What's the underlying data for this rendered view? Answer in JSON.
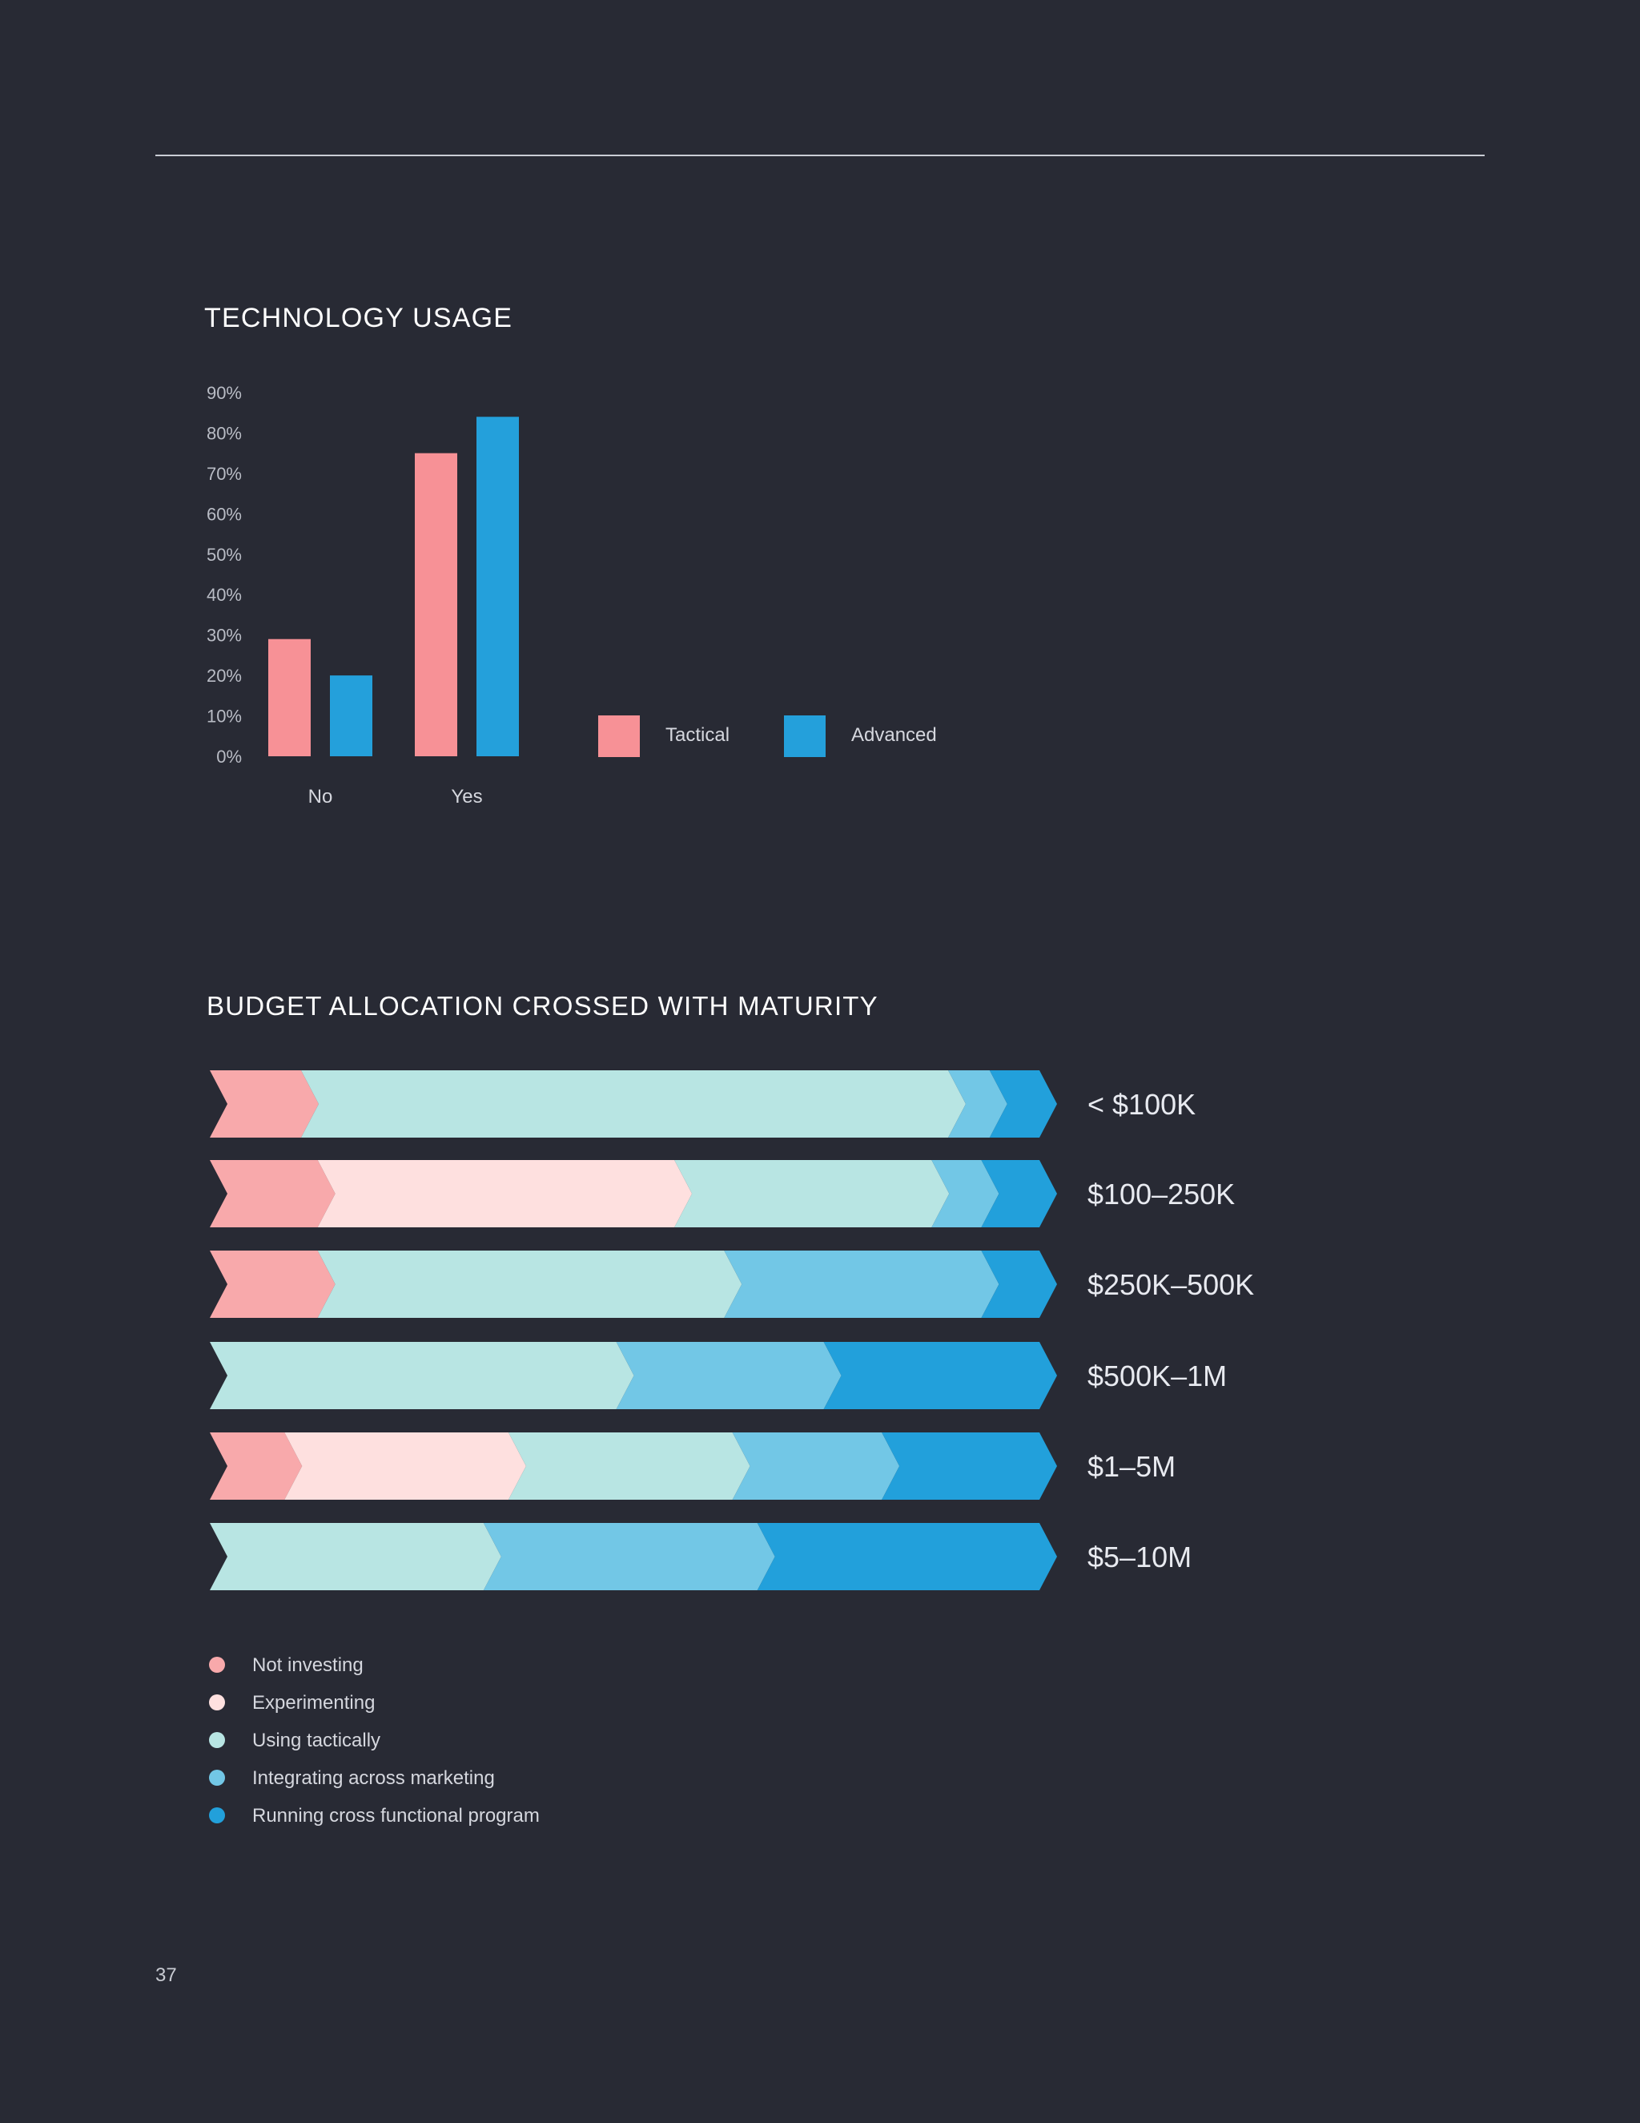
{
  "page": {
    "number": "37"
  },
  "colors": {
    "background": "#282a34",
    "tactical": "#f79196",
    "advanced": "#24a0db",
    "not_investing": "#f8a9ab",
    "experimenting": "#fee0df",
    "using_tactically": "#b8e5e3",
    "integrating": "#72c7e6",
    "running": "#22a0db"
  },
  "chart_data": [
    {
      "type": "bar",
      "title": "TECHNOLOGY USAGE",
      "categories": [
        "No",
        "Yes"
      ],
      "series": [
        {
          "name": "Tactical",
          "color": "#f79196",
          "values": [
            29,
            75
          ]
        },
        {
          "name": "Advanced",
          "color": "#24a0db",
          "values": [
            20,
            84
          ]
        }
      ],
      "y_ticks": [
        0,
        10,
        20,
        30,
        40,
        50,
        60,
        70,
        80,
        90
      ],
      "y_tick_labels": [
        "0%",
        "10%",
        "20%",
        "30%",
        "40%",
        "50%",
        "60%",
        "70%",
        "80%",
        "90%"
      ],
      "ylim": [
        0,
        90
      ],
      "xlabel": "",
      "ylabel": "",
      "legend": {
        "position": "right"
      }
    },
    {
      "type": "stacked-bar-horizontal",
      "title": "BUDGET ALLOCATION CROSSED WITH MATURITY",
      "categories": [
        "< $100K",
        "$100–250K",
        "$250K–500K",
        "$500K–1M",
        "$1–5M",
        "$5–10M"
      ],
      "series": [
        {
          "name": "Not investing",
          "color": "#f8a9ab",
          "values": [
            11,
            13,
            13,
            0,
            9,
            0
          ]
        },
        {
          "name": "Experimenting",
          "color": "#fee0df",
          "values": [
            0,
            43,
            0,
            0,
            27,
            0
          ]
        },
        {
          "name": "Using tactically",
          "color": "#b8e5e3",
          "values": [
            78,
            31,
            49,
            49,
            27,
            33
          ]
        },
        {
          "name": "Integrating across marketing",
          "color": "#72c7e6",
          "values": [
            5,
            6,
            31,
            25,
            18,
            33
          ]
        },
        {
          "name": "Running cross functional program",
          "color": "#22a0db",
          "values": [
            6,
            7,
            7,
            26,
            19,
            34
          ]
        }
      ],
      "xlim": [
        0,
        100
      ],
      "legend": {
        "position": "bottom-left"
      }
    }
  ]
}
